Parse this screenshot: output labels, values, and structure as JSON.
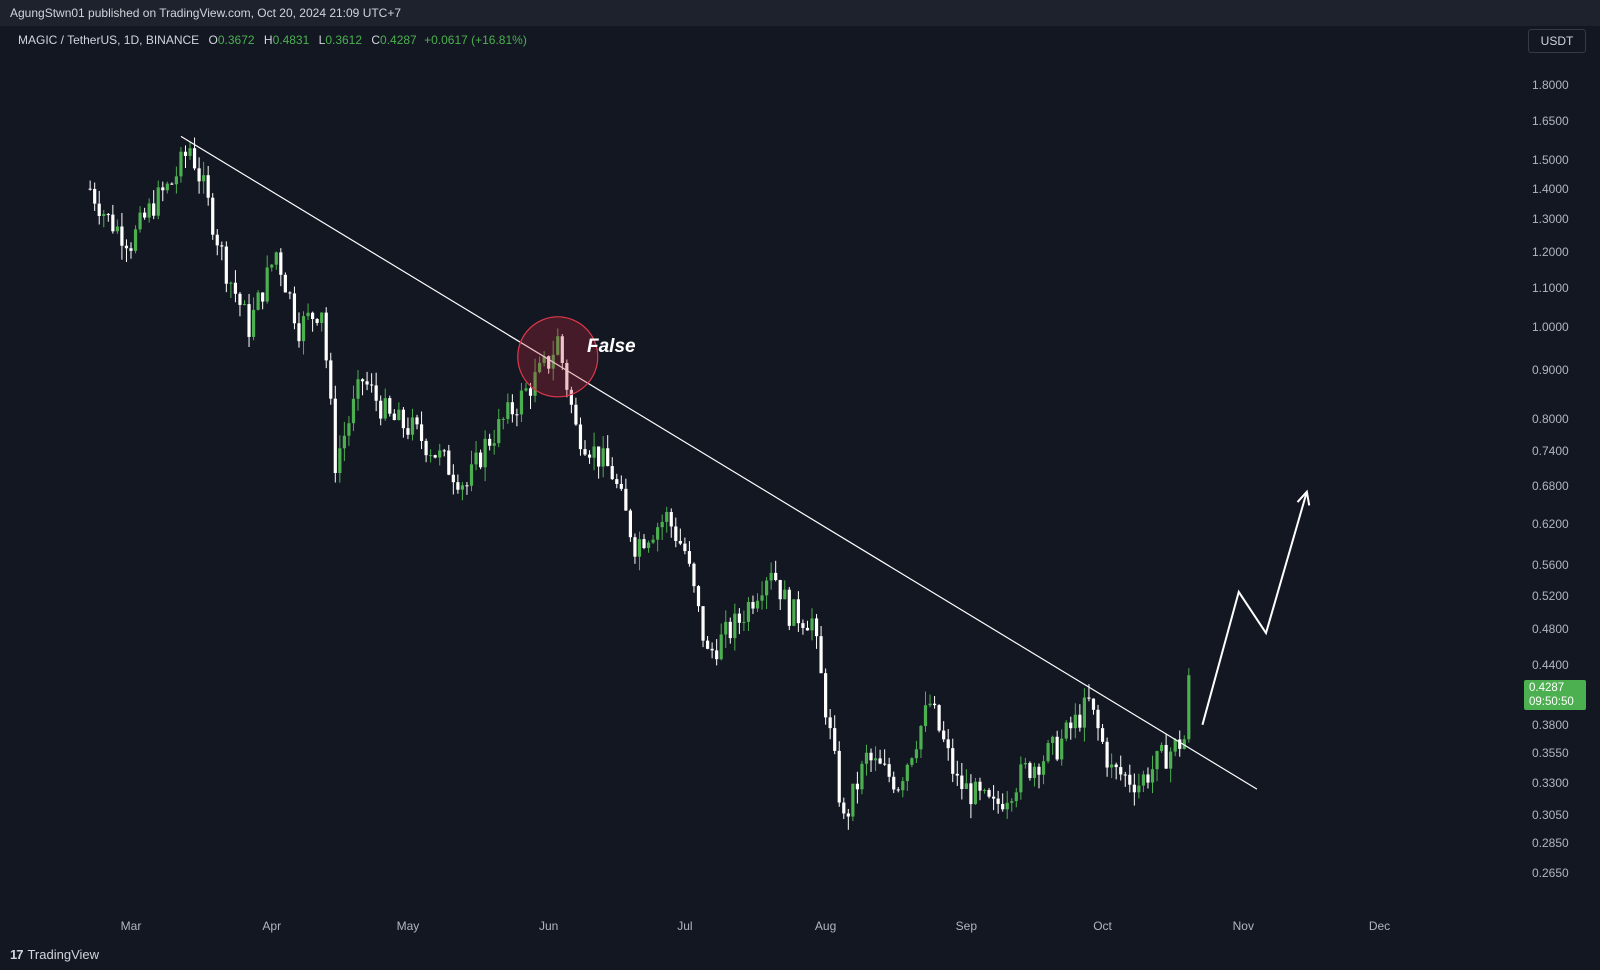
{
  "header": {
    "published_text": "AgungStwn01 published on TradingView.com, Oct 20, 2024 21:09 UTC+7"
  },
  "symbol": {
    "name": "MAGIC / TetherUS, 1D, BINANCE",
    "o_label": "O",
    "o_value": "0.3672",
    "h_label": "H",
    "h_value": "0.4831",
    "l_label": "L",
    "l_value": "0.3612",
    "c_label": "C",
    "c_value": "0.4287",
    "change": "+0.0617 (+16.81%)"
  },
  "currency_button": "USDT",
  "price_axis": [
    "1.8000",
    "1.6500",
    "1.5000",
    "1.4000",
    "1.3000",
    "1.2000",
    "1.1000",
    "1.0000",
    "0.9000",
    "0.8000",
    "0.7400",
    "0.6800",
    "0.6200",
    "0.5600",
    "0.5200",
    "0.4800",
    "0.4400",
    "0.3800",
    "0.3550",
    "0.3300",
    "0.3050",
    "0.2850",
    "0.2650"
  ],
  "last_price": {
    "value": "0.4287",
    "countdown": "09:50:50"
  },
  "time_axis": [
    "Mar",
    "Apr",
    "May",
    "Jun",
    "Jul",
    "Aug",
    "Sep",
    "Oct",
    "Nov",
    "Dec"
  ],
  "annotation": {
    "text": "False"
  },
  "footer": {
    "logo_glyph": "17",
    "brand": "TradingView"
  },
  "colors": {
    "background": "#131722",
    "up": "#4caf50",
    "down": "#ffffff",
    "circle": "#e0384a",
    "last_price_bg": "#4caf50"
  },
  "chart_data": {
    "type": "candlestick",
    "symbol": "MAGIC / TetherUS",
    "timeframe": "1D",
    "scale": "log",
    "ylim": [
      0.25,
      2.0
    ],
    "x_months": [
      "Mar",
      "Apr",
      "May",
      "Jun",
      "Jul",
      "Aug",
      "Sep",
      "Oct",
      "Nov",
      "Dec"
    ],
    "close_path": [
      {
        "date": "2024-02-21",
        "close": 1.4
      },
      {
        "date": "2024-02-25",
        "close": 1.3
      },
      {
        "date": "2024-03-01",
        "close": 1.23
      },
      {
        "date": "2024-03-06",
        "close": 1.35
      },
      {
        "date": "2024-03-10",
        "close": 1.42
      },
      {
        "date": "2024-03-14",
        "close": 1.55
      },
      {
        "date": "2024-03-17",
        "close": 1.4
      },
      {
        "date": "2024-03-22",
        "close": 1.15
      },
      {
        "date": "2024-03-27",
        "close": 1.0
      },
      {
        "date": "2024-04-02",
        "close": 1.2
      },
      {
        "date": "2024-04-07",
        "close": 1.0
      },
      {
        "date": "2024-04-12",
        "close": 1.05
      },
      {
        "date": "2024-04-15",
        "close": 0.72
      },
      {
        "date": "2024-04-21",
        "close": 0.88
      },
      {
        "date": "2024-04-27",
        "close": 0.8
      },
      {
        "date": "2024-05-02",
        "close": 0.78
      },
      {
        "date": "2024-05-09",
        "close": 0.72
      },
      {
        "date": "2024-05-14",
        "close": 0.68
      },
      {
        "date": "2024-05-18",
        "close": 0.75
      },
      {
        "date": "2024-05-25",
        "close": 0.83
      },
      {
        "date": "2024-06-01",
        "close": 0.92
      },
      {
        "date": "2024-06-03",
        "close": 0.97
      },
      {
        "date": "2024-06-07",
        "close": 0.78
      },
      {
        "date": "2024-06-15",
        "close": 0.7
      },
      {
        "date": "2024-06-20",
        "close": 0.59
      },
      {
        "date": "2024-06-27",
        "close": 0.63
      },
      {
        "date": "2024-07-01",
        "close": 0.58
      },
      {
        "date": "2024-07-06",
        "close": 0.45
      },
      {
        "date": "2024-07-13",
        "close": 0.49
      },
      {
        "date": "2024-07-20",
        "close": 0.56
      },
      {
        "date": "2024-07-24",
        "close": 0.5
      },
      {
        "date": "2024-07-29",
        "close": 0.49
      },
      {
        "date": "2024-08-05",
        "close": 0.3
      },
      {
        "date": "2024-08-10",
        "close": 0.35
      },
      {
        "date": "2024-08-17",
        "close": 0.33
      },
      {
        "date": "2024-08-24",
        "close": 0.4
      },
      {
        "date": "2024-08-30",
        "close": 0.33
      },
      {
        "date": "2024-09-07",
        "close": 0.31
      },
      {
        "date": "2024-09-14",
        "close": 0.34
      },
      {
        "date": "2024-09-21",
        "close": 0.36
      },
      {
        "date": "2024-09-28",
        "close": 0.4
      },
      {
        "date": "2024-10-03",
        "close": 0.34
      },
      {
        "date": "2024-10-09",
        "close": 0.33
      },
      {
        "date": "2024-10-14",
        "close": 0.35
      },
      {
        "date": "2024-10-19",
        "close": 0.3672
      },
      {
        "date": "2024-10-20",
        "close": 0.4287
      }
    ],
    "trendline": [
      {
        "date": "2024-03-12",
        "price": 1.59
      },
      {
        "date": "2024-11-04",
        "price": 0.325
      }
    ],
    "projection_arrow": [
      {
        "date": "2024-10-23",
        "price": 0.38
      },
      {
        "date": "2024-10-31",
        "price": 0.525
      },
      {
        "date": "2024-11-06",
        "price": 0.475
      },
      {
        "date": "2024-11-15",
        "price": 0.67
      }
    ],
    "annotation": {
      "text": "False",
      "date": "2024-06-03",
      "price": 0.93
    }
  }
}
